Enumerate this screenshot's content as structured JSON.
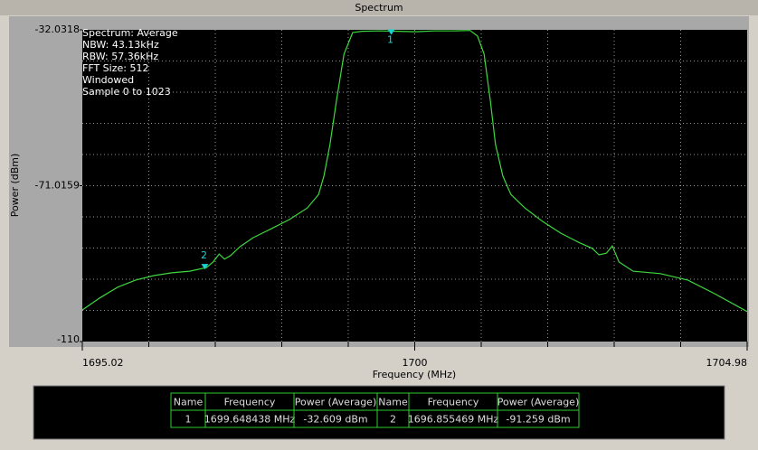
{
  "window_title": "Spectrum",
  "chart_data": {
    "type": "line",
    "info": [
      "Spectrum: Average",
      "NBW: 43.13kHz",
      "RBW: 57.36kHz",
      "FFT Size: 512",
      "Windowed",
      "Sample 0 to 1023"
    ],
    "xlabel": "Frequency (MHz)",
    "ylabel": "Power (dBm)",
    "xlim": [
      1695.02,
      1704.98
    ],
    "ylim": [
      -110,
      -32.0318
    ],
    "xticks": [
      1695.02,
      1700,
      1704.98
    ],
    "yticks": [
      -110,
      -71.0159,
      -32.0318
    ],
    "grid": true,
    "color": "#3ed83e",
    "x": [
      1695.02,
      1695.28,
      1695.55,
      1695.82,
      1696.09,
      1696.36,
      1696.63,
      1696.88,
      1696.98,
      1697.07,
      1697.15,
      1697.24,
      1697.38,
      1697.58,
      1697.85,
      1698.12,
      1698.39,
      1698.56,
      1698.64,
      1698.73,
      1698.83,
      1698.94,
      1699.07,
      1699.21,
      1699.48,
      1699.75,
      1700.02,
      1700.29,
      1700.56,
      1700.83,
      1700.94,
      1701.04,
      1701.13,
      1701.21,
      1701.32,
      1701.44,
      1701.65,
      1701.92,
      1702.19,
      1702.46,
      1702.66,
      1702.76,
      1702.87,
      1702.96,
      1703.06,
      1703.27,
      1703.68,
      1704.09,
      1704.49,
      1704.98
    ],
    "values": [
      -102.1,
      -99.1,
      -96.4,
      -94.6,
      -93.5,
      -92.8,
      -92.4,
      -91.5,
      -90.1,
      -88.1,
      -89.4,
      -88.5,
      -86.3,
      -84.0,
      -81.8,
      -79.5,
      -76.6,
      -73.2,
      -68.6,
      -60.7,
      -49.4,
      -38.1,
      -32.7,
      -32.4,
      -32.3,
      -32.4,
      -32.5,
      -32.3,
      -32.3,
      -32.2,
      -33.6,
      -38.1,
      -49.4,
      -60.7,
      -68.6,
      -73.2,
      -76.6,
      -80.0,
      -82.9,
      -85.2,
      -86.7,
      -88.3,
      -87.9,
      -86.1,
      -90.1,
      -92.4,
      -93.0,
      -94.6,
      -98.0,
      -102.5
    ],
    "markers": {
      "color": "#19d3d3",
      "names": [
        "1",
        "2"
      ],
      "x": [
        1699.648438,
        1696.855469
      ],
      "values": [
        -32.609,
        -91.259
      ],
      "x_labels": [
        "1699.648438 MHz",
        "1696.855469 MHz"
      ],
      "value_labels": [
        "-32.609 dBm",
        "-91.259 dBm"
      ]
    }
  },
  "marker_table": {
    "headers": [
      "Name",
      "Frequency",
      "Power (Average)",
      "Name",
      "Frequency",
      "Power (Average)"
    ]
  }
}
